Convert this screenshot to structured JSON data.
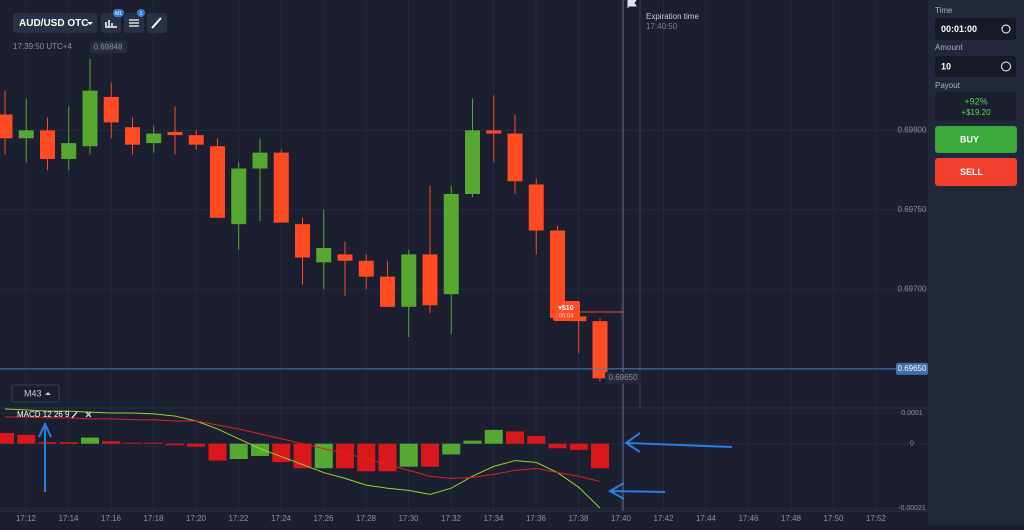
{
  "header": {
    "asset": "AUD/USD OTC",
    "timeframe_badge": "M1",
    "indicator_badge": "1",
    "clock": "17:39:50 UTC+4",
    "price_ref": "0.69848"
  },
  "expiration": {
    "label": "Expiration time",
    "time": "17:40:50"
  },
  "trade": {
    "amount": "▾$10",
    "timer": "00:04"
  },
  "period": "M43",
  "indicator": "MACD 12 26 9",
  "time_axis": [
    "17:12",
    "17:14",
    "17:16",
    "17:18",
    "17:20",
    "17:22",
    "17:24",
    "17:26",
    "17:28",
    "17:30",
    "17:32",
    "17:34",
    "17:36",
    "17:38",
    "17:40",
    "17:42",
    "17:44",
    "17:46",
    "17:48",
    "17:50",
    "17:52"
  ],
  "chart_data": [
    {
      "type": "candlestick",
      "up_color": "#56a831",
      "down_color": "#ff4a22",
      "open": [
        0.6981,
        0.69795,
        0.698,
        0.69782,
        0.6979,
        0.69821,
        0.69802,
        0.69792,
        0.69799,
        0.69797,
        0.6979,
        0.69741,
        0.69776,
        0.69786,
        0.69741,
        0.69717,
        0.69722,
        0.69718,
        0.69708,
        0.69689,
        0.69722,
        0.69697,
        0.6976,
        0.698,
        0.69798,
        0.69766,
        0.69737,
        0.69683,
        0.6968
      ],
      "high": [
        0.69825,
        0.6982,
        0.69808,
        0.69815,
        0.69845,
        0.6983,
        0.69808,
        0.69803,
        0.69815,
        0.698,
        0.69795,
        0.6978,
        0.69795,
        0.69788,
        0.69745,
        0.6975,
        0.6973,
        0.69722,
        0.69718,
        0.69725,
        0.69765,
        0.69765,
        0.6982,
        0.69822,
        0.6981,
        0.6977,
        0.6974,
        0.6969,
        0.69682
      ],
      "low": [
        0.69785,
        0.6978,
        0.69775,
        0.69775,
        0.69785,
        0.69795,
        0.69785,
        0.69786,
        0.69785,
        0.69788,
        0.69745,
        0.69725,
        0.69743,
        0.69742,
        0.69703,
        0.697,
        0.69696,
        0.697,
        0.69689,
        0.6967,
        0.69685,
        0.69672,
        0.69758,
        0.6978,
        0.6976,
        0.69722,
        0.6968,
        0.6966,
        0.69642
      ],
      "close": [
        0.69795,
        0.698,
        0.69782,
        0.69792,
        0.69825,
        0.69805,
        0.69791,
        0.69798,
        0.69797,
        0.69791,
        0.69745,
        0.69776,
        0.69786,
        0.69742,
        0.6972,
        0.69726,
        0.69718,
        0.69708,
        0.69689,
        0.69722,
        0.6969,
        0.6976,
        0.698,
        0.69798,
        0.69768,
        0.69737,
        0.69682,
        0.6968,
        0.69644
      ],
      "ylim": [
        0.69626,
        0.69882
      ],
      "yticks": [
        {
          "value": 0.698,
          "label": "0.69800"
        },
        {
          "value": 0.6975,
          "label": "0.69750"
        },
        {
          "value": 0.697,
          "label": "0.69700"
        }
      ],
      "current_price": {
        "value": 0.6965,
        "label": "0.69650"
      }
    },
    {
      "type": "macd",
      "up_color": "#56a831",
      "down_color": "#d8181c",
      "macd_color": "#9bd42a",
      "signal_color": "#e0201e",
      "histogram": [
        3.5e-05,
        2.9e-05,
        5e-06,
        5e-06,
        2e-05,
        8e-06,
        3e-06,
        3e-06,
        -5e-06,
        -1e-05,
        -5.5e-05,
        -5e-05,
        -4e-05,
        -6e-05,
        -8e-05,
        -8e-05,
        -8e-05,
        -9e-05,
        -9e-05,
        -7.5e-05,
        -7.5e-05,
        -3.5e-05,
        1e-05,
        4.5e-05,
        4e-05,
        2.5e-05,
        -1.5e-05,
        -2e-05,
        -8e-05
      ],
      "histogram_up": [
        false,
        false,
        false,
        false,
        true,
        false,
        false,
        false,
        false,
        false,
        false,
        true,
        true,
        false,
        false,
        true,
        false,
        false,
        false,
        true,
        false,
        true,
        true,
        true,
        false,
        false,
        false,
        false,
        false
      ],
      "macd": [
        0.000113,
        0.00011,
        0.000106,
        0.000106,
        0.000103,
        0.0001,
        0.0001,
        9.7e-05,
        9e-05,
        7.4e-05,
        4.8e-05,
        1.6e-05,
        -1.6e-05,
        -4.2e-05,
        -6.8e-05,
        -9.4e-05,
        -0.000113,
        -0.000135,
        -0.000145,
        -0.000152,
        -0.000165,
        -0.000145,
        -0.000106,
        -7.4e-05,
        -5.5e-05,
        -6.1e-05,
        -9.4e-05,
        -0.000142,
        -0.00021
      ],
      "signal": [
        8.7e-05,
        8.7e-05,
        8.4e-05,
        8.4e-05,
        8.1e-05,
        8.1e-05,
        7.8e-05,
        7.8e-05,
        7.4e-05,
        7.4e-05,
        6.1e-05,
        4.8e-05,
        3.2e-05,
        1.6e-05,
        0,
        -1.6e-05,
        -3.2e-05,
        -4.8e-05,
        -6.8e-05,
        -8.7e-05,
        -0.000106,
        -0.000113,
        -0.00011,
        -0.0001,
        -8.7e-05,
        -8.1e-05,
        -9.4e-05,
        -0.000106,
        -0.000123
      ],
      "ylim": [
        -0.000216,
        0.000113
      ],
      "yticks": [
        0.0001,
        0,
        -0.00021
      ]
    }
  ],
  "sidebar": {
    "time_label": "Time",
    "time_value": "00:01:00",
    "amount_label": "Amount",
    "amount_value": "10",
    "payout_label": "Payout",
    "payout_percent": "+92%",
    "payout_amount": "+$19.20",
    "buy": "BUY",
    "sell": "SELL"
  }
}
